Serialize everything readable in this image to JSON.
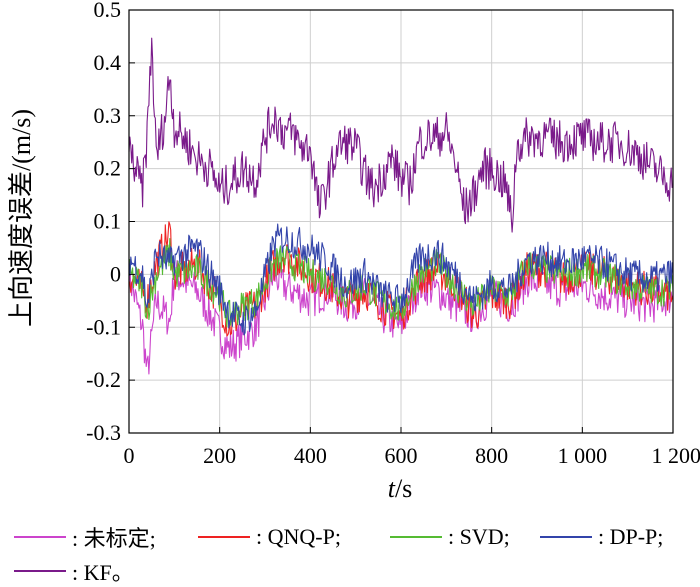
{
  "chart_data": {
    "type": "line",
    "ylabel": "上向速度误差/(m/s)",
    "xlabel_italic": "t",
    "xlabel_rest": "/s",
    "xlim": [
      0,
      1200
    ],
    "ylim": [
      -0.3,
      0.5
    ],
    "x_ticks": [
      0,
      200,
      400,
      600,
      800,
      1000,
      1200
    ],
    "x_tick_labels": [
      "0",
      "200",
      "400",
      "600",
      "800",
      "1 000",
      "1 200"
    ],
    "y_ticks": [
      -0.3,
      -0.2,
      -0.1,
      0,
      0.1,
      0.2,
      0.3,
      0.4,
      0.5
    ],
    "y_tick_labels": [
      "-0.3",
      "-0.2",
      "-0.1",
      "0",
      "0.1",
      "0.2",
      "0.3",
      "0.4",
      "0.5"
    ],
    "grid": true,
    "series": [
      {
        "name": ": 未标定;",
        "color": "#cc44cc",
        "x": [
          0,
          30,
          40,
          60,
          90,
          100,
          150,
          200,
          220,
          250,
          280,
          320,
          340,
          400,
          440,
          480,
          520,
          560,
          600,
          640,
          680,
          720,
          760,
          800,
          840,
          880,
          920,
          960,
          1000,
          1050,
          1100,
          1150,
          1200
        ],
        "y": [
          0.0,
          -0.1,
          -0.19,
          -0.05,
          -0.09,
          0.0,
          -0.03,
          -0.11,
          -0.14,
          -0.12,
          -0.1,
          0.0,
          -0.02,
          -0.05,
          -0.03,
          -0.06,
          -0.04,
          -0.08,
          -0.1,
          -0.02,
          -0.03,
          -0.06,
          -0.08,
          -0.04,
          -0.06,
          -0.01,
          -0.02,
          -0.03,
          -0.02,
          -0.04,
          -0.05,
          -0.06,
          -0.04
        ]
      },
      {
        "name": ": QNQ-P;",
        "color": "#ee2222",
        "x": [
          0,
          30,
          40,
          60,
          90,
          100,
          150,
          200,
          220,
          250,
          280,
          320,
          340,
          400,
          440,
          480,
          520,
          560,
          600,
          640,
          680,
          720,
          760,
          800,
          840,
          880,
          920,
          960,
          1000,
          1050,
          1100,
          1150,
          1200
        ],
        "y": [
          0.0,
          -0.03,
          -0.05,
          0.02,
          0.08,
          0.0,
          0.02,
          -0.05,
          -0.1,
          -0.07,
          -0.06,
          0.02,
          0.04,
          0.0,
          -0.02,
          -0.05,
          -0.03,
          -0.06,
          -0.08,
          -0.01,
          0.01,
          -0.02,
          -0.08,
          -0.04,
          -0.05,
          0.01,
          0.01,
          -0.01,
          0.01,
          0.0,
          -0.02,
          -0.03,
          -0.04
        ]
      },
      {
        "name": ": SVD;",
        "color": "#55bb33",
        "x": [
          0,
          30,
          40,
          60,
          90,
          100,
          150,
          200,
          220,
          250,
          280,
          320,
          340,
          400,
          440,
          480,
          520,
          560,
          600,
          640,
          680,
          720,
          760,
          800,
          840,
          880,
          920,
          960,
          1000,
          1050,
          1100,
          1150,
          1200
        ],
        "y": [
          0.0,
          -0.02,
          -0.07,
          0.0,
          0.04,
          0.0,
          0.01,
          -0.04,
          -0.08,
          -0.06,
          -0.05,
          0.02,
          0.03,
          0.0,
          -0.01,
          -0.04,
          -0.02,
          -0.05,
          -0.07,
          0.0,
          0.02,
          -0.02,
          -0.06,
          -0.03,
          -0.04,
          0.02,
          0.01,
          0.0,
          0.01,
          0.0,
          -0.02,
          -0.03,
          -0.03
        ]
      },
      {
        "name": ": DP-P;",
        "color": "#3344aa",
        "x": [
          0,
          30,
          40,
          60,
          90,
          100,
          150,
          200,
          220,
          250,
          280,
          320,
          340,
          400,
          440,
          480,
          520,
          560,
          600,
          640,
          680,
          720,
          760,
          800,
          840,
          880,
          920,
          960,
          1000,
          1050,
          1100,
          1150,
          1200
        ],
        "y": [
          0.03,
          0.0,
          -0.06,
          0.04,
          0.02,
          0.03,
          0.05,
          -0.03,
          -0.07,
          -0.09,
          -0.07,
          0.06,
          0.07,
          0.05,
          0.02,
          -0.02,
          0.0,
          -0.04,
          -0.05,
          0.03,
          0.04,
          0.0,
          -0.05,
          -0.02,
          -0.03,
          0.03,
          0.03,
          0.02,
          0.03,
          0.02,
          0.0,
          -0.01,
          0.0
        ]
      },
      {
        "name": ": KF。",
        "color": "#7a1a8a",
        "x": [
          0,
          20,
          30,
          40,
          50,
          60,
          80,
          90,
          100,
          120,
          150,
          180,
          200,
          220,
          250,
          280,
          300,
          320,
          340,
          360,
          380,
          400,
          420,
          440,
          460,
          480,
          500,
          520,
          540,
          560,
          580,
          600,
          620,
          640,
          660,
          680,
          700,
          720,
          740,
          760,
          780,
          800,
          830,
          845,
          855,
          880,
          920,
          960,
          1000,
          1040,
          1080,
          1120,
          1160,
          1200
        ],
        "y": [
          0.24,
          0.18,
          0.16,
          0.26,
          0.44,
          0.22,
          0.3,
          0.38,
          0.28,
          0.26,
          0.22,
          0.2,
          0.16,
          0.17,
          0.2,
          0.18,
          0.26,
          0.3,
          0.27,
          0.27,
          0.24,
          0.24,
          0.12,
          0.18,
          0.24,
          0.25,
          0.24,
          0.19,
          0.16,
          0.19,
          0.22,
          0.18,
          0.17,
          0.25,
          0.26,
          0.26,
          0.27,
          0.21,
          0.12,
          0.15,
          0.2,
          0.2,
          0.17,
          0.1,
          0.24,
          0.26,
          0.26,
          0.25,
          0.26,
          0.25,
          0.25,
          0.23,
          0.2,
          0.17
        ]
      }
    ]
  }
}
